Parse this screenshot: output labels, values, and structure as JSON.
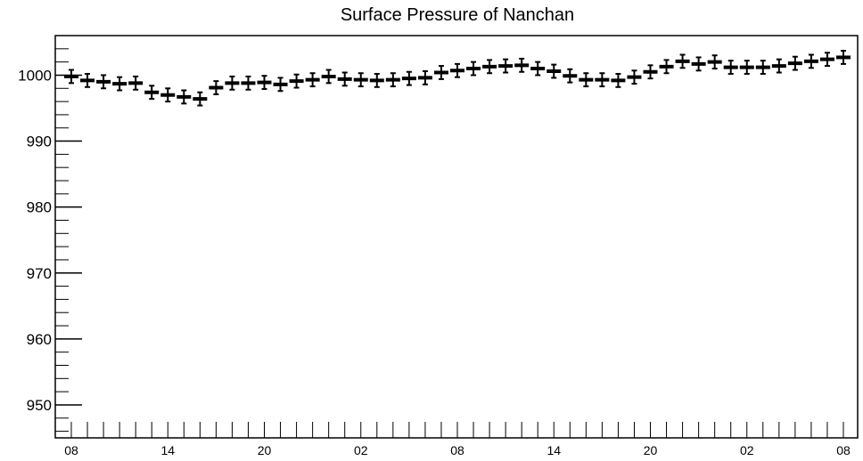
{
  "chart_data": {
    "type": "scatter",
    "title": "Surface Pressure of Nanchan",
    "xlabel": "",
    "ylabel": "",
    "ylim": [
      945,
      1006
    ],
    "y_ticks": [
      950,
      960,
      970,
      980,
      990,
      1000
    ],
    "x_tick_labels": [
      "08",
      "14",
      "20",
      "02",
      "08",
      "14",
      "20",
      "02",
      "08"
    ],
    "grid": false,
    "legend": "none",
    "series": [
      {
        "values": [
          999.8,
          999.2,
          999.0,
          998.7,
          998.8,
          997.4,
          997.0,
          996.7,
          996.4,
          998.1,
          998.8,
          998.8,
          998.9,
          998.6,
          999.1,
          999.3,
          999.8,
          999.4,
          999.3,
          999.2,
          999.3,
          999.5,
          999.6,
          1000.4,
          1000.7,
          1001.0,
          1001.3,
          1001.4,
          1001.5,
          1001.0,
          1000.6,
          999.9,
          999.3,
          999.3,
          999.2,
          999.7,
          1000.5,
          1001.3,
          1002.1,
          1001.7,
          1002.0,
          1001.2,
          1001.2,
          1001.2,
          1001.4,
          1001.8,
          1002.1,
          1002.4,
          1002.7
        ],
        "error": 1.0
      }
    ],
    "marker_color": "#000000"
  }
}
